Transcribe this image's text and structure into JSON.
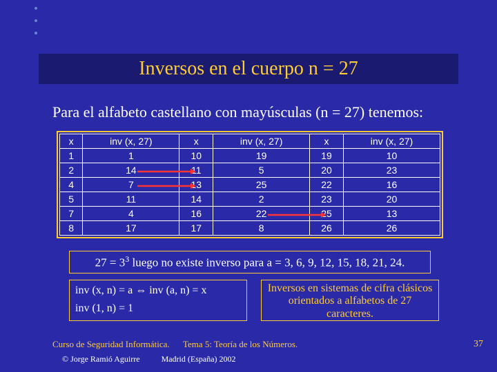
{
  "title": "Inversos en el cuerpo n = 27",
  "intro": "Para el alfabeto castellano con mayúsculas (n = 27) tenemos:",
  "table": {
    "headers": [
      "x",
      "inv (x, 27)",
      "x",
      "inv (x, 27)",
      "x",
      "inv (x, 27)"
    ],
    "rows": [
      [
        "1",
        "1",
        "10",
        "19",
        "19",
        "10"
      ],
      [
        "2",
        "14",
        "11",
        "5",
        "20",
        "23"
      ],
      [
        "4",
        "7",
        "13",
        "25",
        "22",
        "16"
      ],
      [
        "5",
        "11",
        "14",
        "2",
        "23",
        "20"
      ],
      [
        "7",
        "4",
        "16",
        "22",
        "25",
        "13"
      ],
      [
        "8",
        "17",
        "17",
        "8",
        "26",
        "26"
      ]
    ],
    "header_color": "#ffffff",
    "cell_color": "#ffffff",
    "border_color": "#ffffff",
    "outer_border_color": "#ffcc33",
    "background": "#2a2aa8",
    "font_family": "Arial",
    "font_size_pt": 11
  },
  "arrows": {
    "color": "#ff3333",
    "positions": [
      {
        "row": 1,
        "from_col": 1,
        "to_col": 2
      },
      {
        "row": 2,
        "from_col": 1,
        "to_col": 2
      },
      {
        "row": 4,
        "from_col": 3,
        "to_col": 4
      }
    ]
  },
  "note": {
    "prefix": "27 = 3",
    "exp": "3",
    "suffix": " luego no existe inverso para a = 3, 6, 9, 12, 15, 18, 21, 24."
  },
  "left_box": {
    "line1": "inv (x, n) = a ⇔ inv (a, n) = x",
    "line2": "inv (1, n) = 1"
  },
  "right_box": "Inversos en sistemas de cifra clásicos orientados a alfabetos de 27 caracteres.",
  "footer": {
    "course": "Curso de Seguridad Informática.",
    "topic": "Tema 5:  Teoría de los Números.",
    "author_prefix": "© ",
    "author": "Jorge Ramió Aguirre",
    "place": "Madrid (España) 2002",
    "page": "37"
  },
  "colors": {
    "page_bg": "#2a2aa8",
    "title_bg": "#1a1a70",
    "accent": "#ffcc33",
    "text": "#ffffff",
    "arrow": "#ff3333"
  }
}
